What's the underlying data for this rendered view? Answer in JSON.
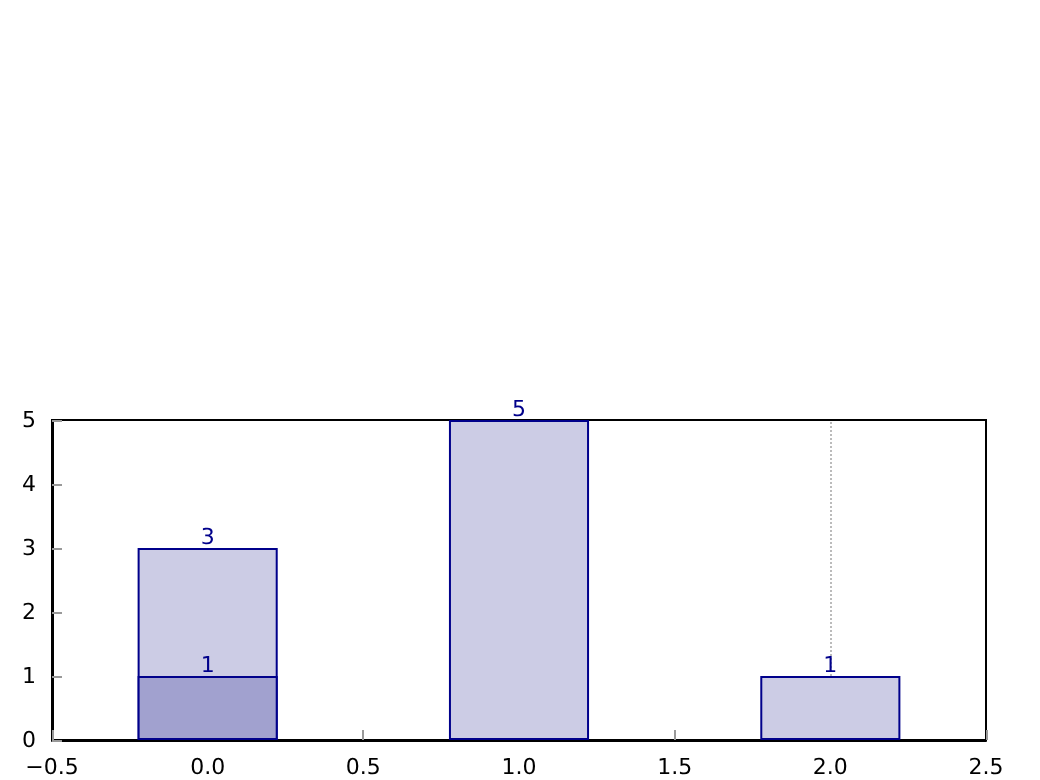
{
  "chart_data": {
    "type": "bar",
    "x": [
      0,
      1,
      2
    ],
    "series": [
      {
        "color": "#ccccE5",
        "values": [
          3,
          5,
          1
        ]
      },
      {
        "color": "#a1a1cf",
        "x": [
          0
        ],
        "values": [
          1
        ]
      }
    ],
    "xlim": [
      -0.5,
      2.5
    ],
    "xticks": [
      {
        "value": -0.5,
        "label": "−0.5"
      },
      {
        "value": 0,
        "label": "0.0"
      },
      0.5,
      {
        "value": 1,
        "label": "1.0"
      },
      1.5,
      {
        "value": 2,
        "label": "2.0"
      },
      2.5
    ],
    "ylim": [
      0,
      5
    ],
    "yticks": [
      0,
      1,
      2,
      3,
      4,
      5
    ],
    "data_labels": true,
    "grid": false,
    "ref_lines": [
      {
        "axis": "x",
        "value": 2,
        "color": "#bbbbbb",
        "line_style": "dotted"
      }
    ]
  }
}
